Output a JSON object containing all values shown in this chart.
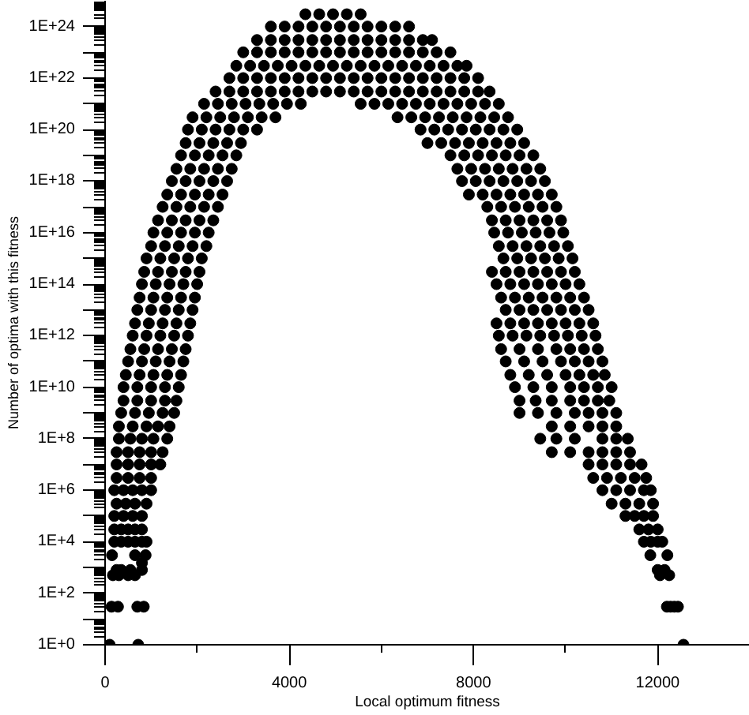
{
  "chart_data": {
    "type": "scatter",
    "xlabel": "Local optimum fitness",
    "ylabel": "Number of optima with this fitness",
    "log": "y",
    "marker": "circle",
    "color": "#000000",
    "xlim": [
      0,
      14000
    ],
    "ylim": [
      1,
      1e+25
    ],
    "xticks": [
      0,
      {
        "value": 2000,
        "label": null
      },
      4000,
      {
        "value": 6000,
        "label": null
      },
      8000,
      {
        "value": 10000,
        "label": null
      },
      12000
    ],
    "yticks": [
      {
        "value": 1,
        "label": "1E+0"
      },
      {
        "value": 10.0,
        "label": null
      },
      {
        "value": 100.0,
        "label": "1E+2"
      },
      {
        "value": 1000.0,
        "label": null
      },
      {
        "value": 10000.0,
        "label": "1E+4"
      },
      {
        "value": 100000.0,
        "label": null
      },
      {
        "value": 1000000.0,
        "label": "1E+6"
      },
      {
        "value": 10000000.0,
        "label": null
      },
      {
        "value": 100000000.0,
        "label": "1E+8"
      },
      {
        "value": 1000000000.0,
        "label": null
      },
      {
        "value": 10000000000.0,
        "label": "1E+10"
      },
      {
        "value": 100000000000.0,
        "label": null
      },
      {
        "value": 1000000000000.0,
        "label": "1E+12"
      },
      {
        "value": 10000000000000.0,
        "label": null
      },
      {
        "value": 100000000000000.0,
        "label": "1E+14"
      },
      {
        "value": 1000000000000000.0,
        "label": null
      },
      {
        "value": 1e+16,
        "label": "1E+16"
      },
      {
        "value": 1e+17,
        "label": null
      },
      {
        "value": 1e+18,
        "label": "1E+18"
      },
      {
        "value": 1e+19,
        "label": null
      },
      {
        "value": 1e+20,
        "label": "1E+20"
      },
      {
        "value": 1e+21,
        "label": null
      },
      {
        "value": 1e+22,
        "label": "1E+22"
      },
      {
        "value": 1e+23,
        "label": null
      },
      {
        "value": 1e+24,
        "label": "1E+24"
      }
    ],
    "x": [
      100,
      720,
      12560,
      140,
      280,
      700,
      840,
      12200,
      12280,
      12360,
      12440,
      170,
      300,
      500,
      650,
      12050,
      12250,
      250,
      350,
      550,
      800,
      12000,
      12150,
      800,
      150,
      650,
      880,
      11840,
      12210,
      200,
      350,
      500,
      650,
      800,
      900,
      11700,
      11850,
      12000,
      12100,
      200,
      350,
      500,
      650,
      800,
      11600,
      11800,
      12000,
      200,
      400,
      600,
      800,
      11300,
      11500,
      11700,
      11900,
      250,
      450,
      650,
      900,
      11000,
      11300,
      11600,
      11900,
      200,
      400,
      600,
      800,
      1000,
      10800,
      11100,
      11400,
      11700,
      11850,
      250,
      500,
      750,
      1000,
      10600,
      10900,
      11200,
      11500,
      11750,
      250,
      500,
      750,
      1000,
      1200,
      10500,
      10800,
      11100,
      11400,
      11650,
      250,
      500,
      750,
      1000,
      1250,
      9700,
      10100,
      10500,
      10800,
      11100,
      11400,
      300,
      550,
      800,
      1050,
      1350,
      9450,
      9800,
      10200,
      10800,
      11100,
      11350,
      300,
      600,
      900,
      1150,
      1400,
      9700,
      10100,
      10500,
      10800,
      11100,
      350,
      650,
      950,
      1250,
      1500,
      9000,
      9400,
      9800,
      10200,
      10500,
      10800,
      11100,
      400,
      700,
      1000,
      1300,
      1550,
      9000,
      9350,
      9700,
      10100,
      10400,
      10700,
      10950,
      400,
      700,
      1000,
      1300,
      1600,
      8900,
      9300,
      9700,
      10100,
      10400,
      10700,
      11000,
      450,
      750,
      1050,
      1350,
      1650,
      8800,
      9200,
      9600,
      10000,
      10300,
      10600,
      10850,
      500,
      800,
      1100,
      1400,
      1700,
      8700,
      9100,
      9500,
      9900,
      10200,
      10500,
      10800,
      550,
      850,
      1150,
      1450,
      1750,
      8600,
      9000,
      9400,
      9800,
      10100,
      10400,
      10700,
      600,
      900,
      1200,
      1500,
      1800,
      10650,
      10350,
      10050,
      9750,
      9450,
      9150,
      8850,
      8550,
      650,
      950,
      1250,
      1550,
      1850,
      10600,
      10300,
      10000,
      9700,
      9400,
      9100,
      8800,
      8500,
      700,
      1000,
      1300,
      1600,
      1900,
      10500,
      10200,
      9900,
      9600,
      9300,
      9000,
      8700,
      750,
      1050,
      1350,
      1650,
      1950,
      10400,
      10100,
      9800,
      9500,
      9200,
      8900,
      8600,
      800,
      1100,
      1400,
      1700,
      2000,
      10300,
      10000,
      9700,
      9400,
      9100,
      8800,
      8500,
      850,
      1150,
      1450,
      1750,
      2050,
      10200,
      9900,
      9600,
      9300,
      9000,
      8700,
      8400,
      900,
      1200,
      1500,
      1800,
      2100,
      10150,
      9850,
      9550,
      9250,
      8950,
      8650,
      1000,
      1300,
      1600,
      1900,
      2200,
      10050,
      9750,
      9450,
      9150,
      8850,
      8550,
      1050,
      1350,
      1650,
      1950,
      2250,
      9950,
      9650,
      9350,
      9050,
      8750,
      8450,
      1150,
      1450,
      1750,
      2050,
      2350,
      9900,
      9600,
      9300,
      9000,
      8700,
      8400,
      1250,
      1550,
      1850,
      2150,
      2450,
      9800,
      9500,
      9200,
      8900,
      8600,
      8300,
      1350,
      1650,
      1950,
      2250,
      2550,
      9700,
      9400,
      9100,
      8800,
      8500,
      8200,
      7900,
      1450,
      1750,
      2050,
      2350,
      2650,
      9550,
      9250,
      8950,
      8650,
      8350,
      8050,
      7750,
      1550,
      1850,
      2150,
      2450,
      2750,
      9450,
      9150,
      8850,
      8550,
      8250,
      7950,
      7650,
      1650,
      1950,
      2250,
      2550,
      2850,
      9300,
      9000,
      8700,
      8400,
      8100,
      7800,
      7500,
      1750,
      2050,
      2350,
      2650,
      2950,
      9100,
      8800,
      8500,
      8200,
      7900,
      7600,
      7300,
      7000,
      1800,
      2100,
      2400,
      2700,
      3000,
      3300,
      8950,
      8650,
      8350,
      8050,
      7750,
      7450,
      7150,
      6850,
      1900,
      2200,
      2500,
      2800,
      3100,
      3400,
      3700,
      8750,
      8450,
      8150,
      7850,
      7550,
      7250,
      6950,
      6650,
      6350,
      2150,
      2450,
      2750,
      3050,
      3350,
      3650,
      3950,
      4250,
      8550,
      8250,
      7950,
      7650,
      7350,
      7050,
      6750,
      6450,
      6150,
      5850,
      5550,
      2400,
      2700,
      3000,
      3300,
      3600,
      3900,
      4200,
      4500,
      4800,
      5100,
      5400,
      5700,
      6000,
      6300,
      6600,
      6900,
      7200,
      7500,
      7800,
      8100,
      8350,
      2700,
      3000,
      3300,
      3600,
      3900,
      4200,
      4500,
      4800,
      5100,
      5400,
      5700,
      6000,
      6300,
      6600,
      6900,
      7200,
      7500,
      7800,
      8100,
      2850,
      3150,
      3450,
      3750,
      4050,
      4350,
      4650,
      4950,
      5250,
      5550,
      5850,
      6150,
      6450,
      6750,
      7050,
      7350,
      7650,
      7850,
      3000,
      3300,
      3600,
      3900,
      4200,
      4500,
      4800,
      5100,
      5400,
      5700,
      6000,
      6300,
      6600,
      6900,
      7200,
      7500,
      3300,
      3600,
      3900,
      4200,
      4500,
      4800,
      5100,
      5400,
      5700,
      6000,
      6300,
      6600,
      6900,
      7100,
      3600,
      3900,
      4200,
      4500,
      4800,
      5100,
      5400,
      5700,
      6000,
      6300,
      6600,
      4350,
      4650,
      4950,
      5250,
      5550
    ],
    "values": [
      1,
      1,
      1,
      30,
      30,
      30,
      30,
      30,
      30,
      30,
      30,
      500,
      500,
      500,
      500,
      500,
      500,
      800,
      800,
      800,
      800,
      800,
      800,
      1500,
      3000,
      3000,
      3000,
      3000,
      3000,
      10000.0,
      10000.0,
      10000.0,
      10000.0,
      10000.0,
      10000.0,
      10000.0,
      10000.0,
      10000.0,
      10000.0,
      30000.0,
      30000.0,
      30000.0,
      30000.0,
      30000.0,
      30000.0,
      30000.0,
      30000.0,
      100000.0,
      100000.0,
      100000.0,
      100000.0,
      100000.0,
      100000.0,
      100000.0,
      100000.0,
      300000.0,
      300000.0,
      300000.0,
      300000.0,
      300000.0,
      300000.0,
      300000.0,
      300000.0,
      1000000.0,
      1000000.0,
      1000000.0,
      1000000.0,
      1000000.0,
      1000000.0,
      1000000.0,
      1000000.0,
      1000000.0,
      1000000.0,
      3000000.0,
      3000000.0,
      3000000.0,
      3000000.0,
      3000000.0,
      3000000.0,
      3000000.0,
      3000000.0,
      3000000.0,
      10000000.0,
      10000000.0,
      10000000.0,
      10000000.0,
      10000000.0,
      10000000.0,
      10000000.0,
      10000000.0,
      10000000.0,
      10000000.0,
      30000000.0,
      30000000.0,
      30000000.0,
      30000000.0,
      30000000.0,
      30000000.0,
      30000000.0,
      30000000.0,
      30000000.0,
      30000000.0,
      30000000.0,
      100000000.0,
      100000000.0,
      100000000.0,
      100000000.0,
      100000000.0,
      100000000.0,
      100000000.0,
      100000000.0,
      100000000.0,
      100000000.0,
      100000000.0,
      300000000.0,
      300000000.0,
      300000000.0,
      300000000.0,
      300000000.0,
      300000000.0,
      300000000.0,
      300000000.0,
      300000000.0,
      300000000.0,
      1000000000.0,
      1000000000.0,
      1000000000.0,
      1000000000.0,
      1000000000.0,
      1000000000.0,
      1000000000.0,
      1000000000.0,
      1000000000.0,
      1000000000.0,
      1000000000.0,
      1000000000.0,
      3000000000.0,
      3000000000.0,
      3000000000.0,
      3000000000.0,
      3000000000.0,
      3000000000.0,
      3000000000.0,
      3000000000.0,
      3000000000.0,
      3000000000.0,
      3000000000.0,
      3000000000.0,
      10000000000.0,
      10000000000.0,
      10000000000.0,
      10000000000.0,
      10000000000.0,
      10000000000.0,
      10000000000.0,
      10000000000.0,
      10000000000.0,
      10000000000.0,
      10000000000.0,
      10000000000.0,
      30000000000.0,
      30000000000.0,
      30000000000.0,
      30000000000.0,
      30000000000.0,
      30000000000.0,
      30000000000.0,
      30000000000.0,
      30000000000.0,
      30000000000.0,
      30000000000.0,
      30000000000.0,
      100000000000.0,
      100000000000.0,
      100000000000.0,
      100000000000.0,
      100000000000.0,
      100000000000.0,
      100000000000.0,
      100000000000.0,
      100000000000.0,
      100000000000.0,
      100000000000.0,
      100000000000.0,
      300000000000.0,
      300000000000.0,
      300000000000.0,
      300000000000.0,
      300000000000.0,
      300000000000.0,
      300000000000.0,
      300000000000.0,
      300000000000.0,
      300000000000.0,
      300000000000.0,
      300000000000.0,
      1000000000000.0,
      1000000000000.0,
      1000000000000.0,
      1000000000000.0,
      1000000000000.0,
      1000000000000.0,
      1000000000000.0,
      1000000000000.0,
      1000000000000.0,
      1000000000000.0,
      1000000000000.0,
      1000000000000.0,
      1000000000000.0,
      3000000000000.0,
      3000000000000.0,
      3000000000000.0,
      3000000000000.0,
      3000000000000.0,
      3000000000000.0,
      3000000000000.0,
      3000000000000.0,
      3000000000000.0,
      3000000000000.0,
      3000000000000.0,
      3000000000000.0,
      3000000000000.0,
      10000000000000.0,
      10000000000000.0,
      10000000000000.0,
      10000000000000.0,
      10000000000000.0,
      10000000000000.0,
      10000000000000.0,
      10000000000000.0,
      10000000000000.0,
      10000000000000.0,
      10000000000000.0,
      10000000000000.0,
      30000000000000.0,
      30000000000000.0,
      30000000000000.0,
      30000000000000.0,
      30000000000000.0,
      30000000000000.0,
      30000000000000.0,
      30000000000000.0,
      30000000000000.0,
      30000000000000.0,
      30000000000000.0,
      30000000000000.0,
      100000000000000.0,
      100000000000000.0,
      100000000000000.0,
      100000000000000.0,
      100000000000000.0,
      100000000000000.0,
      100000000000000.0,
      100000000000000.0,
      100000000000000.0,
      100000000000000.0,
      100000000000000.0,
      100000000000000.0,
      300000000000000.0,
      300000000000000.0,
      300000000000000.0,
      300000000000000.0,
      300000000000000.0,
      300000000000000.0,
      300000000000000.0,
      300000000000000.0,
      300000000000000.0,
      300000000000000.0,
      300000000000000.0,
      300000000000000.0,
      1000000000000000.0,
      1000000000000000.0,
      1000000000000000.0,
      1000000000000000.0,
      1000000000000000.0,
      1000000000000000.0,
      1000000000000000.0,
      1000000000000000.0,
      1000000000000000.0,
      1000000000000000.0,
      1000000000000000.0,
      3000000000000000.0,
      3000000000000000.0,
      3000000000000000.0,
      3000000000000000.0,
      3000000000000000.0,
      3000000000000000.0,
      3000000000000000.0,
      3000000000000000.0,
      3000000000000000.0,
      3000000000000000.0,
      3000000000000000.0,
      1e+16,
      1e+16,
      1e+16,
      1e+16,
      1e+16,
      1e+16,
      1e+16,
      1e+16,
      1e+16,
      1e+16,
      1e+16,
      3e+16,
      3e+16,
      3e+16,
      3e+16,
      3e+16,
      3e+16,
      3e+16,
      3e+16,
      3e+16,
      3e+16,
      3e+16,
      1e+17,
      1e+17,
      1e+17,
      1e+17,
      1e+17,
      1e+17,
      1e+17,
      1e+17,
      1e+17,
      1e+17,
      1e+17,
      3e+17,
      3e+17,
      3e+17,
      3e+17,
      3e+17,
      3e+17,
      3e+17,
      3e+17,
      3e+17,
      3e+17,
      3e+17,
      3e+17,
      1e+18,
      1e+18,
      1e+18,
      1e+18,
      1e+18,
      1e+18,
      1e+18,
      1e+18,
      1e+18,
      1e+18,
      1e+18,
      1e+18,
      3e+18,
      3e+18,
      3e+18,
      3e+18,
      3e+18,
      3e+18,
      3e+18,
      3e+18,
      3e+18,
      3e+18,
      3e+18,
      3e+18,
      1e+19,
      1e+19,
      1e+19,
      1e+19,
      1e+19,
      1e+19,
      1e+19,
      1e+19,
      1e+19,
      1e+19,
      1e+19,
      1e+19,
      3e+19,
      3e+19,
      3e+19,
      3e+19,
      3e+19,
      3e+19,
      3e+19,
      3e+19,
      3e+19,
      3e+19,
      3e+19,
      3e+19,
      3e+19,
      1e+20,
      1e+20,
      1e+20,
      1e+20,
      1e+20,
      1e+20,
      1e+20,
      1e+20,
      1e+20,
      1e+20,
      1e+20,
      1e+20,
      1e+20,
      1e+20,
      3e+20,
      3e+20,
      3e+20,
      3e+20,
      3e+20,
      3e+20,
      3e+20,
      3e+20,
      3e+20,
      3e+20,
      3e+20,
      3e+20,
      3e+20,
      3e+20,
      3e+20,
      3e+20,
      1e+21,
      1e+21,
      1e+21,
      1e+21,
      1e+21,
      1e+21,
      1e+21,
      1e+21,
      1e+21,
      1e+21,
      1e+21,
      1e+21,
      1e+21,
      1e+21,
      1e+21,
      1e+21,
      1e+21,
      1e+21,
      1e+21,
      3e+21,
      3e+21,
      3e+21,
      3e+21,
      3e+21,
      3e+21,
      3e+21,
      3e+21,
      3e+21,
      3e+21,
      3e+21,
      3e+21,
      3e+21,
      3e+21,
      3e+21,
      3e+21,
      3e+21,
      3e+21,
      3e+21,
      3e+21,
      3e+21,
      1e+22,
      1e+22,
      1e+22,
      1e+22,
      1e+22,
      1e+22,
      1e+22,
      1e+22,
      1e+22,
      1e+22,
      1e+22,
      1e+22,
      1e+22,
      1e+22,
      1e+22,
      1e+22,
      1e+22,
      1e+22,
      1e+22,
      3e+22,
      3e+22,
      3e+22,
      3e+22,
      3e+22,
      3e+22,
      3e+22,
      3e+22,
      3e+22,
      3e+22,
      3e+22,
      3e+22,
      3e+22,
      3e+22,
      3e+22,
      3e+22,
      3e+22,
      3e+22,
      1e+23,
      1e+23,
      1e+23,
      1e+23,
      1e+23,
      1e+23,
      1e+23,
      1e+23,
      1e+23,
      1e+23,
      1e+23,
      1e+23,
      1e+23,
      1e+23,
      1e+23,
      1e+23,
      3e+23,
      3e+23,
      3e+23,
      3e+23,
      3e+23,
      3e+23,
      3e+23,
      3e+23,
      3e+23,
      3e+23,
      3e+23,
      3e+23,
      3e+23,
      3e+23,
      1e+24,
      1e+24,
      1e+24,
      1e+24,
      1e+24,
      1e+24,
      1e+24,
      1e+24,
      1e+24,
      1e+24,
      1e+24,
      3e+24,
      3e+24,
      3e+24,
      3e+24,
      3e+24
    ]
  }
}
